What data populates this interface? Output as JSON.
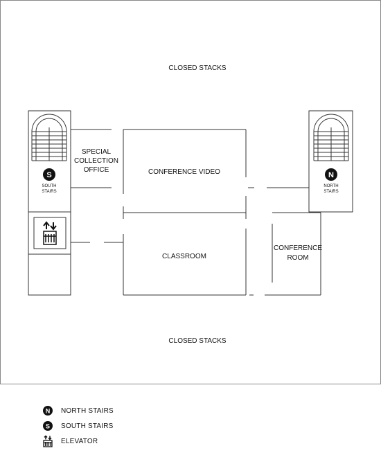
{
  "rooms": {
    "closed_stacks_top": "CLOSED STACKS",
    "closed_stacks_bottom": "CLOSED STACKS",
    "special_collection": [
      "SPECIAL",
      "COLLECTION",
      "OFFICE"
    ],
    "conference_video": "CONFERENCE VIDEO",
    "classroom": "CLASSROOM",
    "conference_room": [
      "CONFERENCE",
      "ROOM"
    ]
  },
  "stairs": {
    "south": {
      "letter": "S",
      "label": [
        "SOUTH",
        "STAIRS"
      ]
    },
    "north": {
      "letter": "N",
      "label": [
        "NORTH",
        "STAIRS"
      ]
    }
  },
  "legend": [
    {
      "icon": "north-stairs-icon",
      "letter": "N",
      "label": "NORTH STAIRS"
    },
    {
      "icon": "south-stairs-icon",
      "letter": "S",
      "label": "SOUTH STAIRS"
    },
    {
      "icon": "elevator-icon",
      "letter": "",
      "label": "ELEVATOR"
    }
  ],
  "colors": {
    "walls": "#333333",
    "marker": "#111111",
    "background": "#ffffff"
  }
}
